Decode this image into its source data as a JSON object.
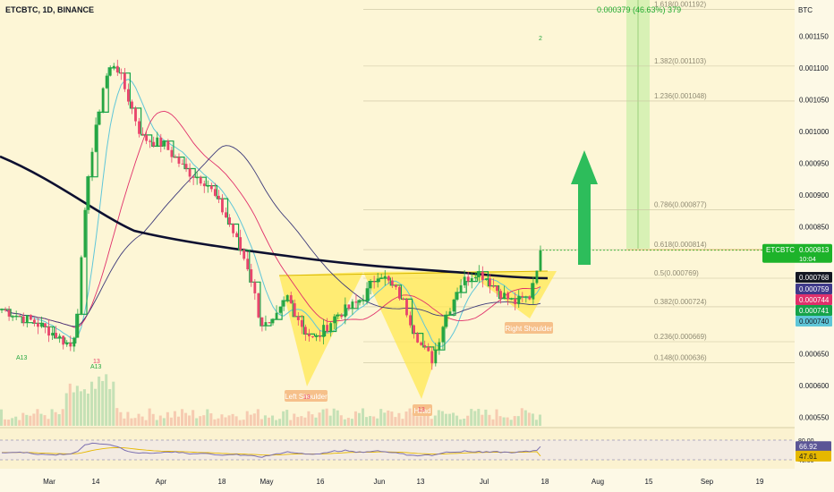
{
  "header": {
    "symbol_label": "ETCBTC, 1D, BINANCE"
  },
  "price_axis": {
    "unit": "BTC",
    "ticks": [
      "0.001150",
      "0.001100",
      "0.001050",
      "0.001000",
      "0.000950",
      "0.000900",
      "0.000850",
      "0.000650",
      "0.000600",
      "0.000550"
    ]
  },
  "price_tags": [
    {
      "label": "ETCBTC",
      "value": "0.000813",
      "sub": "10:04",
      "color": "#1db32a"
    },
    {
      "value": "0.000768",
      "color": "#131722"
    },
    {
      "value": "0.000759",
      "color": "#3f3a8a"
    },
    {
      "value": "0.000744",
      "color": "#e0306b"
    },
    {
      "value": "0.000741",
      "color": "#16a34a"
    },
    {
      "value": "0.000740",
      "color": "#5fc6d8"
    }
  ],
  "rsi_axis": {
    "ticks": [
      "80.00",
      "40.00"
    ],
    "tags": [
      {
        "value": "66.92",
        "color": "#5b5596"
      },
      {
        "value": "47.61",
        "color": "#e6b800"
      }
    ]
  },
  "fib_levels": [
    {
      "label": "1.618(0.001192)",
      "price": 0.001192
    },
    {
      "label": "1.382(0.001103)",
      "price": 0.001103
    },
    {
      "label": "1.236(0.001048)",
      "price": 0.001048
    },
    {
      "label": "0.786(0.000877)",
      "price": 0.000877
    },
    {
      "label": "0.618(0.000814)",
      "price": 0.000814
    },
    {
      "label": "0.5(0.000769)",
      "price": 0.000769
    },
    {
      "label": "0.382(0.000724)",
      "price": 0.000724
    },
    {
      "label": "0.236(0.000669)",
      "price": 0.000669
    },
    {
      "label": "0.148(0.000636)",
      "price": 0.000636
    }
  ],
  "target_label": "0.000379 (46.63%) 379",
  "pattern_labels": {
    "left_shoulder": "Left Shoulder",
    "head": "Head",
    "right_shoulder": "Right Shoulder"
  },
  "small_markers": [
    "A13",
    "A13",
    "13",
    "13",
    "13",
    "2"
  ],
  "time_axis": [
    "Mar",
    "14",
    "Apr",
    "18",
    "May",
    "16",
    "Jun",
    "13",
    "Jul",
    "18",
    "Aug",
    "15",
    "Sep",
    "19"
  ],
  "colors": {
    "up": "#26a641",
    "down": "#e8456c",
    "ma200": "#0d1030",
    "ma100": "#3d3a7a",
    "ma50": "#e0306b",
    "ma_fast": "#5fc6d8",
    "step": "#16a34a",
    "pattern": "#ffe852",
    "target_zone": "#b9ec9a",
    "arrow": "#2dbd5b",
    "rsi": "#7b6fb0",
    "rsi_ma": "#e6b800"
  },
  "chart_data": {
    "type": "candlestick",
    "symbol": "ETCBTC",
    "interval": "1D",
    "exchange": "BINANCE",
    "ylabel": "BTC",
    "ylim": [
      0.00054,
      0.0012
    ],
    "x": [
      "Mar",
      "14",
      "Apr",
      "18",
      "May",
      "16",
      "Jun",
      "13",
      "Jul",
      "18",
      "Aug",
      "15",
      "Sep",
      "19"
    ],
    "series": [
      {
        "name": "ETCBTC",
        "close_path": [
          [
            0,
            0.00072
          ],
          [
            0.06,
            0.0007
          ],
          [
            0.1,
            0.00068
          ],
          [
            0.13,
            0.00066
          ],
          [
            0.14,
            0.00071
          ],
          [
            0.16,
            0.00093
          ],
          [
            0.19,
            0.00108
          ],
          [
            0.21,
            0.00111
          ],
          [
            0.24,
            0.00104
          ],
          [
            0.26,
            0.00099
          ],
          [
            0.3,
            0.00098
          ],
          [
            0.34,
            0.00094
          ],
          [
            0.38,
            0.00092
          ],
          [
            0.42,
            0.00086
          ],
          [
            0.46,
            0.00078
          ],
          [
            0.48,
            0.0007
          ],
          [
            0.5,
            0.00069
          ],
          [
            0.53,
            0.00074
          ],
          [
            0.56,
            0.00069
          ],
          [
            0.58,
            0.00067
          ],
          [
            0.62,
            0.00071
          ],
          [
            0.66,
            0.00073
          ],
          [
            0.68,
            0.00075
          ],
          [
            0.7,
            0.00078
          ],
          [
            0.74,
            0.00074
          ],
          [
            0.78,
            0.00066
          ],
          [
            0.8,
            0.00064
          ],
          [
            0.82,
            0.0007
          ],
          [
            0.85,
            0.00076
          ],
          [
            0.88,
            0.00078
          ],
          [
            0.9,
            0.00077
          ],
          [
            0.92,
            0.00075
          ],
          [
            0.95,
            0.00073
          ],
          [
            0.98,
            0.00074
          ],
          [
            1.0,
            0.000813
          ]
        ]
      }
    ],
    "last_price": 0.000813,
    "rsi": {
      "last": 66.92,
      "ma": 47.61,
      "levels": [
        80,
        40
      ]
    }
  }
}
